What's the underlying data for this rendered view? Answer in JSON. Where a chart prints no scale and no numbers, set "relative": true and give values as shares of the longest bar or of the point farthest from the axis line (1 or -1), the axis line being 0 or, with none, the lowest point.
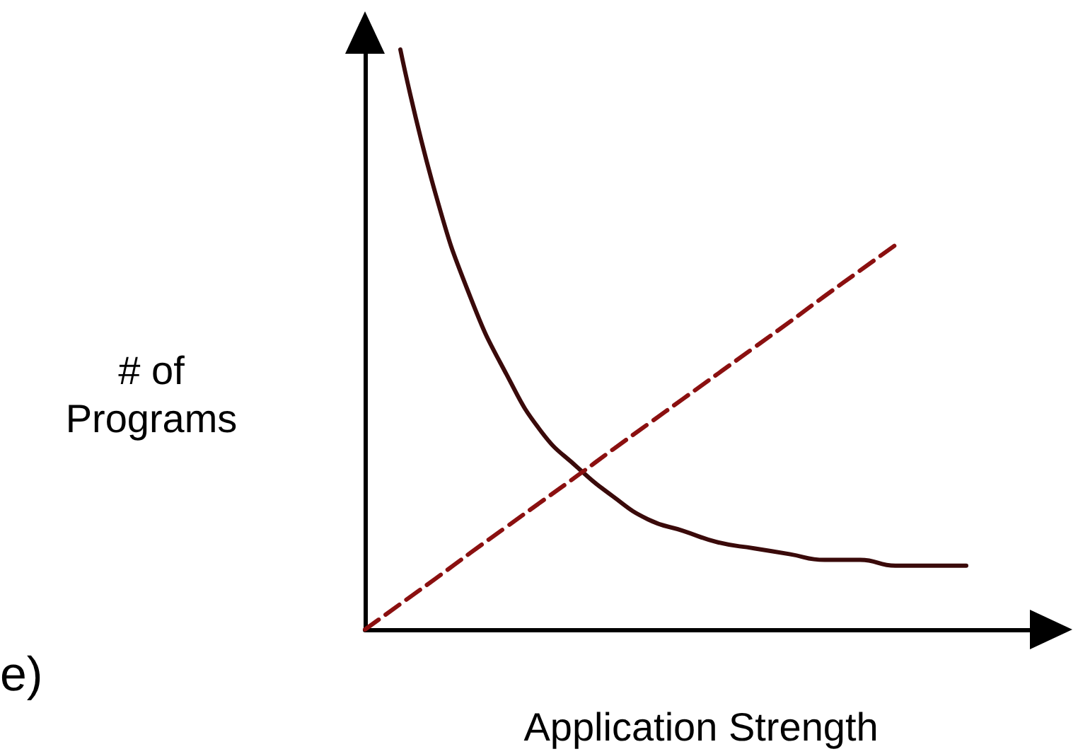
{
  "chart_data": {
    "type": "line",
    "relative": true,
    "xlabel": "Application Strength",
    "ylabel": "# of\nPrograms",
    "annotations": [
      "e)"
    ],
    "marker": "none",
    "grid": false,
    "categories": [
      null,
      null,
      null,
      null,
      null,
      null,
      null,
      null,
      null,
      null,
      null,
      null,
      null,
      null,
      null,
      null,
      null,
      null,
      null,
      null
    ],
    "series": [
      {
        "color": "#3a0a0a",
        "line_style": "solid",
        "values": [
          null,
          1.0,
          0.75,
          0.57,
          0.44,
          0.34,
          0.28,
          0.23,
          0.19,
          0.17,
          0.15,
          0.14,
          0.13,
          0.12,
          0.12,
          0.11,
          0.11,
          0.11,
          null,
          null
        ]
      },
      {
        "color": "#8b1010",
        "line_style": "dashed",
        "values": [
          0,
          0.044,
          0.088,
          0.133,
          0.177,
          0.221,
          0.265,
          0.31,
          0.354,
          0.398,
          0.442,
          0.486,
          0.53,
          0.575,
          0.619,
          0.663,
          null,
          null,
          null,
          null
        ]
      }
    ]
  }
}
